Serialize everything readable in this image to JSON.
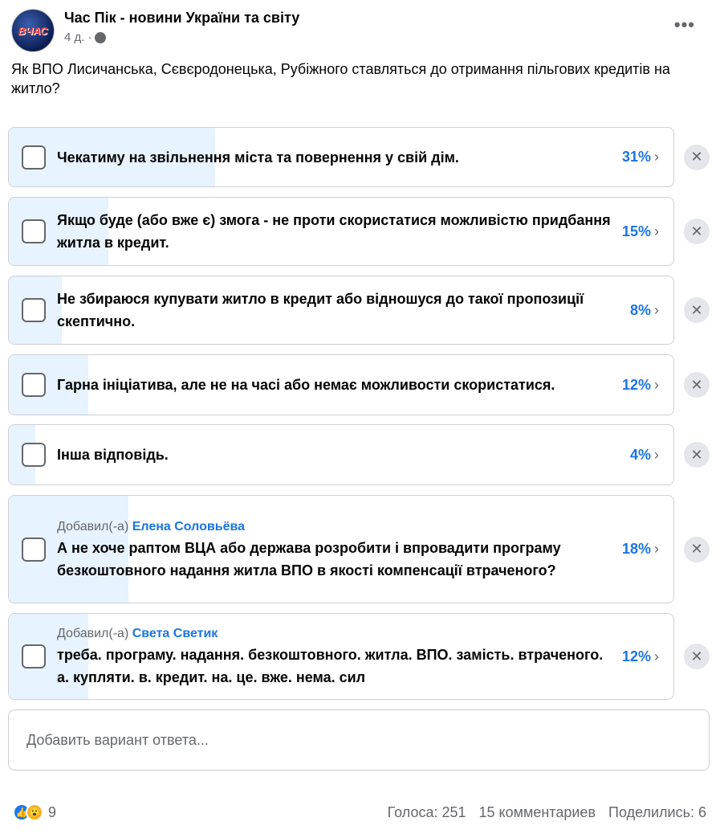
{
  "post": {
    "page_name": "Час Пік - новини України та світу",
    "time": "4 д.",
    "separator": "·",
    "privacy_icon": "globe-icon",
    "logo_text": "ВЧАС ПІК",
    "question": "Як ВПО Лисичанська, Сєвєродонецька, Рубіжного ставляться до отримання пільгових кредитів на житло?"
  },
  "poll": {
    "accent": "#1b74e4",
    "options": [
      {
        "text": "Чекатиму на звільнення міста та повернення у свій дім.",
        "percent": 31,
        "percent_label": "31%"
      },
      {
        "text": "Якщо буде (або вже є) змога - не проти скористатися можливістю придбання житла в кредит.",
        "percent": 15,
        "percent_label": "15%"
      },
      {
        "text": "Не збираюся купувати житло в кредит або відношуся до такої пропозиції скептично.",
        "percent": 8,
        "percent_label": "8%"
      },
      {
        "text": "Гарна ініціатива, але не на часі або немає можливости скористатися.",
        "percent": 12,
        "percent_label": "12%"
      },
      {
        "text": "Інша відповідь.",
        "percent": 4,
        "percent_label": "4%"
      },
      {
        "added_by": "Добавил(-а)",
        "author": "Елена Соловьёва",
        "text": "А не хоче раптом ВЦА або держава розробити і впровадити програму безкоштовного надання житла ВПО в якості компенсації втраченого?",
        "percent": 18,
        "percent_label": "18%"
      },
      {
        "added_by": "Добавил(-а)",
        "author": "Света Светик",
        "text": "треба. програму. надання. безкоштовного. житла. ВПО. замість. втраченого. а. купляти. в. кредит. на. це. вже. нема. сил",
        "percent": 12,
        "percent_label": "12%"
      }
    ],
    "add_placeholder": "Добавить вариант ответа..."
  },
  "footer": {
    "reaction_count": "9",
    "votes": "Голоса: 251",
    "comments": "15 комментариев",
    "shares": "Поделились: 6"
  }
}
